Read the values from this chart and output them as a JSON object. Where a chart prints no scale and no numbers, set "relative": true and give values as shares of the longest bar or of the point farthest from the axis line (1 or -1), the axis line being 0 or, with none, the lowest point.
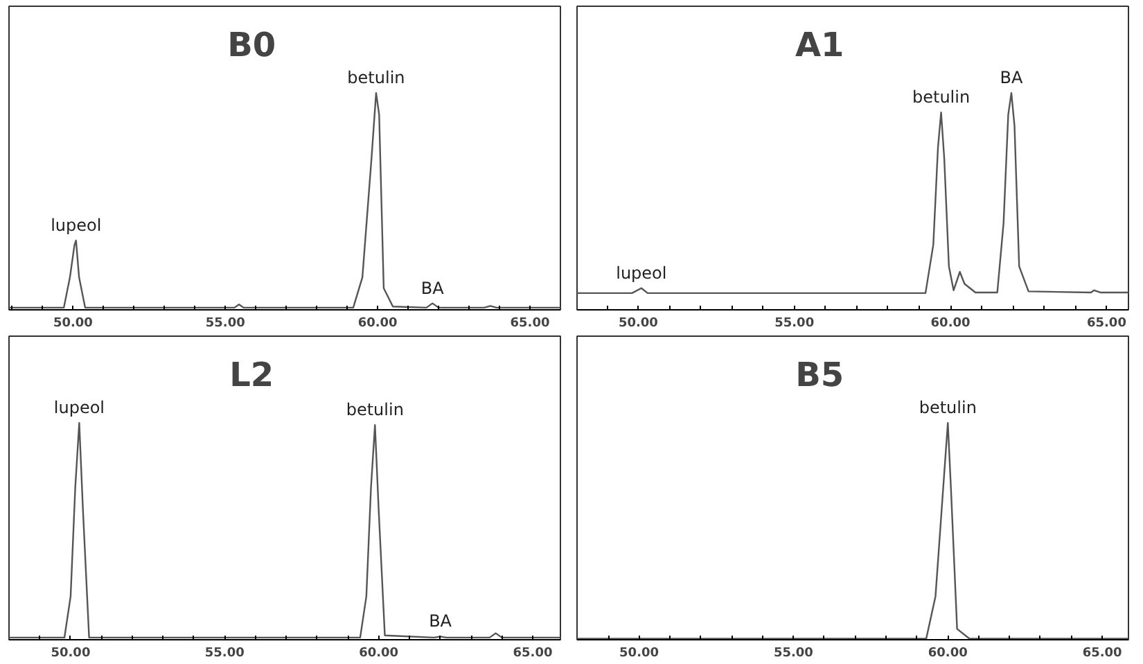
{
  "chart_data": [
    {
      "type": "line",
      "title": "B0",
      "relative": true,
      "tick_labels": "x",
      "grid": false,
      "xlim": [
        47.9,
        66.0
      ],
      "xticks": [
        {
          "value": 48,
          "label": null
        },
        {
          "value": 49,
          "label": null
        },
        {
          "value": 50,
          "label": "50.00"
        },
        {
          "value": 51,
          "label": null
        },
        {
          "value": 52,
          "label": null
        },
        {
          "value": 53,
          "label": null
        },
        {
          "value": 54,
          "label": null
        },
        {
          "value": 55,
          "label": "55.00"
        },
        {
          "value": 56,
          "label": null
        },
        {
          "value": 57,
          "label": null
        },
        {
          "value": 58,
          "label": null
        },
        {
          "value": 59,
          "label": null
        },
        {
          "value": 60,
          "label": "60.00"
        },
        {
          "value": 61,
          "label": null
        },
        {
          "value": 62,
          "label": null
        },
        {
          "value": 63,
          "label": null
        },
        {
          "value": 64,
          "label": null
        },
        {
          "value": 65,
          "label": "65.00"
        }
      ],
      "series": [
        {
          "color": "#555555",
          "x": [
            47.9,
            49.7,
            49.9,
            50.05,
            50.1,
            50.2,
            50.4,
            52,
            55.3,
            55.45,
            55.6,
            59.2,
            59.5,
            59.8,
            59.95,
            60.05,
            60.2,
            60.5,
            61.6,
            61.8,
            62.0,
            63.5,
            63.7,
            63.9,
            66.0
          ],
          "values": [
            0.01,
            0.01,
            0.15,
            0.3,
            0.32,
            0.15,
            0.01,
            0.01,
            0.01,
            0.025,
            0.01,
            0.01,
            0.15,
            0.7,
            1.0,
            0.9,
            0.1,
            0.015,
            0.01,
            0.03,
            0.01,
            0.01,
            0.018,
            0.01,
            0.01
          ]
        }
      ],
      "annotations": [
        {
          "text": "lupeol",
          "x": 50.1,
          "y": 0.32
        },
        {
          "text": "betulin",
          "x": 59.95,
          "y": 1.0
        },
        {
          "text": "BA",
          "x": 61.8,
          "y": 0.03
        }
      ]
    },
    {
      "type": "line",
      "title": "A1",
      "relative": true,
      "tick_labels": "x",
      "grid": false,
      "xlim": [
        48.04,
        65.7
      ],
      "xticks": [
        {
          "value": 49,
          "label": null
        },
        {
          "value": 50,
          "label": "50.00"
        },
        {
          "value": 51,
          "label": null
        },
        {
          "value": 52,
          "label": null
        },
        {
          "value": 53,
          "label": null
        },
        {
          "value": 54,
          "label": null
        },
        {
          "value": 55,
          "label": "55.00"
        },
        {
          "value": 56,
          "label": null
        },
        {
          "value": 57,
          "label": null
        },
        {
          "value": 58,
          "label": null
        },
        {
          "value": 59,
          "label": null
        },
        {
          "value": 60,
          "label": "60.00"
        },
        {
          "value": 61,
          "label": null
        },
        {
          "value": 62,
          "label": null
        },
        {
          "value": 63,
          "label": null
        },
        {
          "value": 64,
          "label": null
        },
        {
          "value": 65,
          "label": "65.00"
        }
      ],
      "series": [
        {
          "color": "#555555",
          "x": [
            48.04,
            49.8,
            50.1,
            50.3,
            55.0,
            59.2,
            59.45,
            59.6,
            59.7,
            59.8,
            59.95,
            60.1,
            60.3,
            60.45,
            60.8,
            61.5,
            61.7,
            61.85,
            61.95,
            62.05,
            62.2,
            62.5,
            64.5,
            64.6,
            64.8,
            65.7
          ],
          "values": [
            0.077,
            0.077,
            0.1,
            0.077,
            0.077,
            0.077,
            0.3,
            0.75,
            0.91,
            0.7,
            0.2,
            0.09,
            0.175,
            0.12,
            0.08,
            0.08,
            0.4,
            0.9,
            1.0,
            0.85,
            0.2,
            0.085,
            0.08,
            0.09,
            0.08,
            0.08
          ]
        }
      ],
      "annotations": [
        {
          "text": "lupeol",
          "x": 50.1,
          "y": 0.1
        },
        {
          "text": "betulin",
          "x": 59.7,
          "y": 0.91
        },
        {
          "text": "BA",
          "x": 61.95,
          "y": 1.0
        }
      ]
    },
    {
      "type": "line",
      "title": "L2",
      "relative": true,
      "tick_labels": "x",
      "grid": false,
      "xlim": [
        48.0,
        65.9
      ],
      "xticks": [
        {
          "value": 49,
          "label": null
        },
        {
          "value": 50,
          "label": "50.00"
        },
        {
          "value": 51,
          "label": null
        },
        {
          "value": 52,
          "label": null
        },
        {
          "value": 53,
          "label": null
        },
        {
          "value": 54,
          "label": null
        },
        {
          "value": 55,
          "label": "55.00"
        },
        {
          "value": 56,
          "label": null
        },
        {
          "value": 57,
          "label": null
        },
        {
          "value": 58,
          "label": null
        },
        {
          "value": 59,
          "label": null
        },
        {
          "value": 60,
          "label": "60.00"
        },
        {
          "value": 61,
          "label": null
        },
        {
          "value": 62,
          "label": null
        },
        {
          "value": 63,
          "label": null
        },
        {
          "value": 64,
          "label": null
        },
        {
          "value": 65,
          "label": "65.00"
        }
      ],
      "series": [
        {
          "color": "#555555",
          "x": [
            48.0,
            49.8,
            50.0,
            50.15,
            50.28,
            50.4,
            50.6,
            55.0,
            59.4,
            59.6,
            59.75,
            59.88,
            60.0,
            60.2,
            61.8,
            62.0,
            62.2,
            63.6,
            63.8,
            64.0,
            65.9
          ],
          "values": [
            0.01,
            0.01,
            0.2,
            0.7,
            1.0,
            0.6,
            0.01,
            0.01,
            0.01,
            0.2,
            0.7,
            0.99,
            0.6,
            0.02,
            0.01,
            0.015,
            0.01,
            0.01,
            0.03,
            0.01,
            0.01
          ]
        }
      ],
      "annotations": [
        {
          "text": "lupeol",
          "x": 50.28,
          "y": 1.0
        },
        {
          "text": "betulin",
          "x": 59.88,
          "y": 0.99
        },
        {
          "text": "BA",
          "x": 62.0,
          "y": 0.015
        }
      ]
    },
    {
      "type": "line",
      "title": "B5",
      "relative": true,
      "tick_labels": "x",
      "grid": false,
      "xlim": [
        47.99,
        65.85
      ],
      "xticks": [
        {
          "value": 49,
          "label": null
        },
        {
          "value": 50,
          "label": "50.00"
        },
        {
          "value": 51,
          "label": null
        },
        {
          "value": 52,
          "label": null
        },
        {
          "value": 53,
          "label": null
        },
        {
          "value": 54,
          "label": null
        },
        {
          "value": 55,
          "label": "55.00"
        },
        {
          "value": 56,
          "label": null
        },
        {
          "value": 57,
          "label": null
        },
        {
          "value": 58,
          "label": null
        },
        {
          "value": 59,
          "label": null
        },
        {
          "value": 60,
          "label": "60.00"
        },
        {
          "value": 61,
          "label": null
        },
        {
          "value": 62,
          "label": null
        },
        {
          "value": 63,
          "label": null
        },
        {
          "value": 64,
          "label": null
        },
        {
          "value": 65,
          "label": "65.00"
        }
      ],
      "series": [
        {
          "color": "#555555",
          "x": [
            47.99,
            55.0,
            59.3,
            59.6,
            59.8,
            60.0,
            60.1,
            60.3,
            60.7,
            65.85
          ],
          "values": [
            0.005,
            0.005,
            0.005,
            0.2,
            0.6,
            1.0,
            0.7,
            0.05,
            0.005,
            0.005
          ]
        }
      ],
      "annotations": [
        {
          "text": "betulin",
          "x": 60.0,
          "y": 1.0
        }
      ]
    }
  ]
}
